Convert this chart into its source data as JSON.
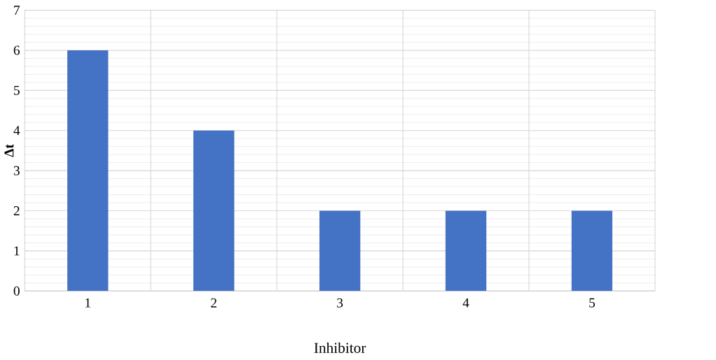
{
  "chart_data": {
    "type": "bar",
    "xlabel": "Inhibitor",
    "ylabel": "**Δt**",
    "categories": [
      "1",
      "2",
      "3",
      "4",
      "5"
    ],
    "values": [
      6,
      4,
      2,
      2,
      2
    ],
    "color": "#4472c4",
    "ylim": [
      0,
      7
    ],
    "yticks": [
      0,
      1,
      2,
      3,
      4,
      5,
      6,
      7
    ],
    "grid": true
  }
}
